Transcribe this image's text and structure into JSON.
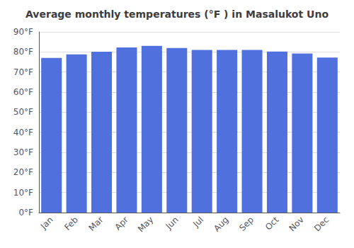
{
  "chart_data": {
    "type": "bar",
    "title": "Average monthly temperatures (°F ) in Masalukot Uno",
    "categories": [
      "Jan",
      "Feb",
      "Mar",
      "Apr",
      "May",
      "Jun",
      "Jul",
      "Aug",
      "Sep",
      "Oct",
      "Nov",
      "Dec"
    ],
    "values": [
      77.0,
      78.8,
      80.1,
      82.2,
      83.0,
      82.0,
      81.0,
      81.0,
      81.0,
      80.2,
      79.2,
      77.2
    ],
    "ylim": [
      0,
      90
    ],
    "yticks": [
      {
        "value": 0,
        "label": "0°F"
      },
      {
        "value": 10,
        "label": "10°F"
      },
      {
        "value": 20,
        "label": "20°F"
      },
      {
        "value": 30,
        "label": "30°F"
      },
      {
        "value": 40,
        "label": "40°F"
      },
      {
        "value": 50,
        "label": "50°F"
      },
      {
        "value": 60,
        "label": "60°F"
      },
      {
        "value": 70,
        "label": "70°F"
      },
      {
        "value": 80,
        "label": "80°F"
      },
      {
        "value": 90,
        "label": "90°F"
      }
    ],
    "grid": true
  }
}
